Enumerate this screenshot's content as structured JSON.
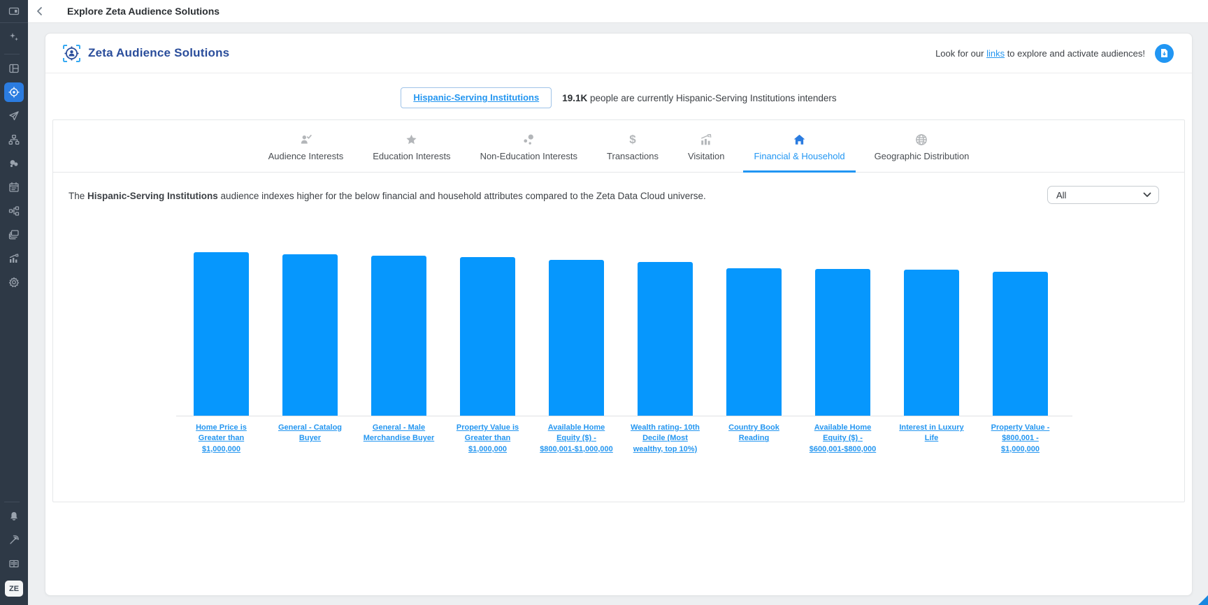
{
  "header": {
    "title": "Explore Zeta Audience Solutions"
  },
  "sidebar": {
    "top_item": {
      "icon": "panel-icon"
    },
    "items": [
      {
        "icon": "sparkles-icon",
        "name": "assistant"
      },
      {
        "divider": true
      },
      {
        "icon": "layout-icon",
        "name": "dashboards"
      },
      {
        "icon": "target-icon",
        "name": "audience-explorer",
        "active": true
      },
      {
        "icon": "send-icon",
        "name": "campaigns"
      },
      {
        "icon": "sitemap-icon",
        "name": "journeys"
      },
      {
        "icon": "segments-icon",
        "name": "segments"
      },
      {
        "icon": "calendar-icon",
        "name": "calendar"
      },
      {
        "icon": "workflow-icon",
        "name": "workflows"
      },
      {
        "icon": "stack-icon",
        "name": "collections"
      },
      {
        "icon": "chart-up-icon",
        "name": "reports"
      },
      {
        "icon": "gear-icon",
        "name": "settings"
      }
    ],
    "bottom_items": [
      {
        "divider": true
      },
      {
        "icon": "bell-icon",
        "name": "notifications"
      },
      {
        "icon": "signal-icon",
        "name": "broadcast"
      },
      {
        "icon": "book-icon",
        "name": "documentation"
      }
    ],
    "avatar": "ZE"
  },
  "brand": {
    "title": "Zeta Audience Solutions"
  },
  "banner": {
    "pre": "Look for our ",
    "link": "links",
    "post": " to explore and activate audiences!"
  },
  "audience": {
    "name": "Hispanic-Serving Institutions",
    "count": "19.1K",
    "count_text": " people are currently Hispanic-Serving Institutions intenders"
  },
  "tabs": [
    {
      "label": "Audience Interests",
      "icon": "person-check-icon",
      "active": false
    },
    {
      "label": "Education Interests",
      "icon": "star-icon",
      "active": false
    },
    {
      "label": "Non-Education Interests",
      "icon": "scatter-dots-icon",
      "active": false
    },
    {
      "label": "Transactions",
      "icon": "dollar-icon",
      "active": false
    },
    {
      "label": "Visitation",
      "icon": "chart-trend-icon",
      "active": false
    },
    {
      "label": "Financial & Household",
      "icon": "home-icon",
      "active": true
    },
    {
      "label": "Geographic Distribution",
      "icon": "globe-icon",
      "active": false
    }
  ],
  "description": {
    "pre": "The ",
    "bold": "Hispanic-Serving Institutions",
    "post": " audience indexes higher for the below financial and household attributes compared to the Zeta Data Cloud universe."
  },
  "filter": {
    "value": "All"
  },
  "chart_data": {
    "type": "bar",
    "title": "",
    "xlabel": "",
    "ylabel": "",
    "categories": [
      "Home Price is Greater than $1,000,000",
      "General - Catalog Buyer",
      "General - Male Merchandise Buyer",
      "Property Value is Greater than $1,000,000",
      "Available Home Equity ($) - $800,001-$1,000,000",
      "Wealth rating- 10th Decile (Most wealthy, top 10%)",
      "Country Book Reading",
      "Available Home Equity ($) - $600,001-$800,000",
      "Interest in Luxury Life",
      "Property Value - $800,001 - $1,000,000"
    ],
    "values": [
      234,
      231,
      229,
      227,
      223,
      220,
      211,
      210,
      209,
      206
    ],
    "ylim": [
      0,
      250
    ],
    "grid": false,
    "legend": "none",
    "bar_color": "#0697fd",
    "note": "y-axis unlabeled in source; values are relative index estimates"
  },
  "colors": {
    "accent_blue": "#2196f3",
    "bar_blue": "#0697fd",
    "link_blue": "#2496f0",
    "brand_navy": "#2a4d9b",
    "sidebar_bg": "#2e3946",
    "active_item_bg": "#2b7ce0"
  }
}
